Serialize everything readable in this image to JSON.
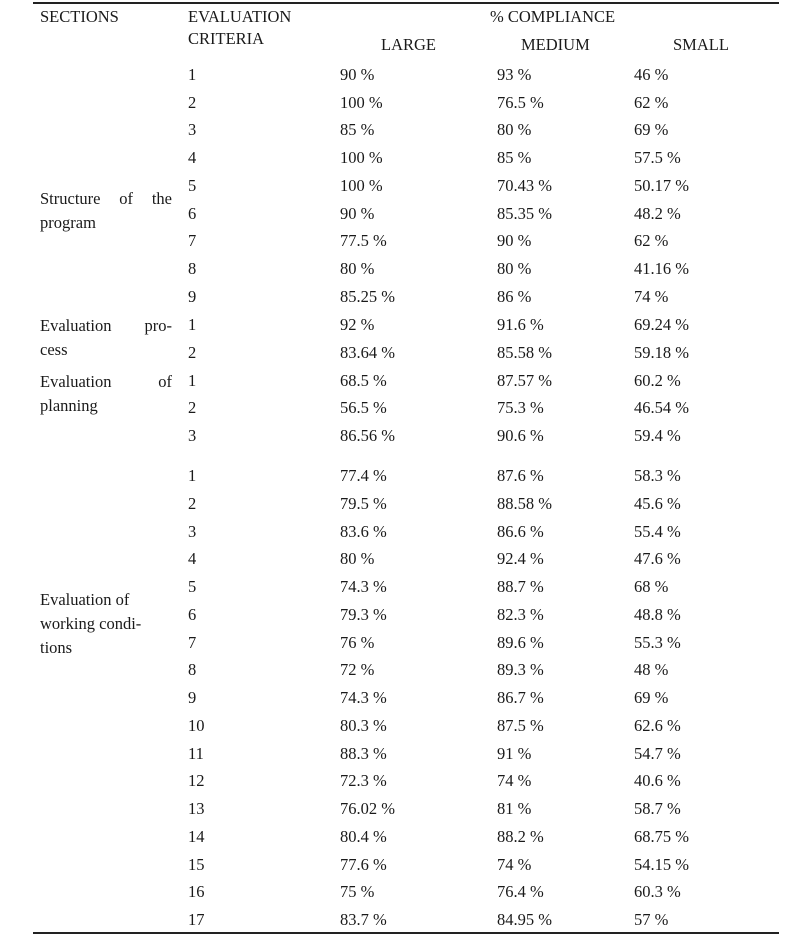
{
  "table": {
    "headers": {
      "sections": "SECTIONS",
      "criteria_line1": "EVALUATION",
      "criteria_line2": "CRITERIA",
      "compliance": "% COMPLIANCE",
      "large": "LARGE",
      "medium": "MEDIUM",
      "small": "SMALL"
    },
    "sections": [
      {
        "label_lines": [
          "Structure of the",
          "program"
        ]
      },
      {
        "label_lines": [
          "Evaluation pro-",
          "cess"
        ]
      },
      {
        "label_lines": [
          "Evaluation of",
          "planning"
        ]
      },
      {
        "label_lines": [
          "Evaluation of",
          "working condi-",
          "tions"
        ]
      }
    ],
    "rows": [
      {
        "section": 0,
        "criteria": "1",
        "large": "90 %",
        "medium": "93 %",
        "small": "46 %"
      },
      {
        "section": 0,
        "criteria": "2",
        "large": "100 %",
        "medium": "76.5 %",
        "small": "62 %"
      },
      {
        "section": 0,
        "criteria": "3",
        "large": "85 %",
        "medium": "80 %",
        "small": "69 %"
      },
      {
        "section": 0,
        "criteria": "4",
        "large": "100 %",
        "medium": "85 %",
        "small": "57.5 %"
      },
      {
        "section": 0,
        "criteria": "5",
        "large": "100 %",
        "medium": "70.43 %",
        "small": "50.17 %"
      },
      {
        "section": 0,
        "criteria": "6",
        "large": "90 %",
        "medium": "85.35 %",
        "small": "48.2 %"
      },
      {
        "section": 0,
        "criteria": "7",
        "large": "77.5 %",
        "medium": "90 %",
        "small": "62 %"
      },
      {
        "section": 0,
        "criteria": "8",
        "large": "80 %",
        "medium": "80 %",
        "small": "41.16 %"
      },
      {
        "section": 0,
        "criteria": "9",
        "large": "85.25 %",
        "medium": "86 %",
        "small": "74 %"
      },
      {
        "section": 1,
        "criteria": "1",
        "large": "92 %",
        "medium": "91.6 %",
        "small": "69.24 %"
      },
      {
        "section": 1,
        "criteria": "2",
        "large": "83.64 %",
        "medium": "85.58 %",
        "small": "59.18 %"
      },
      {
        "section": 2,
        "criteria": "1",
        "large": "68.5 %",
        "medium": "87.57 %",
        "small": "60.2 %"
      },
      {
        "section": 2,
        "criteria": "2",
        "large": "56.5 %",
        "medium": "75.3 %",
        "small": "46.54 %"
      },
      {
        "section": 2,
        "criteria": "3",
        "large": "86.56 %",
        "medium": "90.6 %",
        "small": "59.4 %"
      },
      {
        "section": 3,
        "criteria": "1",
        "large": "77.4 %",
        "medium": "87.6 %",
        "small": "58.3 %"
      },
      {
        "section": 3,
        "criteria": "2",
        "large": "79.5 %",
        "medium": "88.58 %",
        "small": "45.6 %"
      },
      {
        "section": 3,
        "criteria": "3",
        "large": "83.6 %",
        "medium": "86.6 %",
        "small": "55.4 %"
      },
      {
        "section": 3,
        "criteria": "4",
        "large": "80 %",
        "medium": "92.4 %",
        "small": "47.6 %"
      },
      {
        "section": 3,
        "criteria": "5",
        "large": "74.3 %",
        "medium": "88.7  %",
        "small": "68 %"
      },
      {
        "section": 3,
        "criteria": "6",
        "large": "79.3 %",
        "medium": "82.3 %",
        "small": "48.8 %"
      },
      {
        "section": 3,
        "criteria": "7",
        "large": "76 %",
        "medium": "89.6 %",
        "small": "55.3 %"
      },
      {
        "section": 3,
        "criteria": "8",
        "large": "72 %",
        "medium": "89.3 %",
        "small": "48 %"
      },
      {
        "section": 3,
        "criteria": "9",
        "large": "74.3 %",
        "medium": "86.7 %",
        "small": "69 %"
      },
      {
        "section": 3,
        "criteria": "10",
        "large": "80.3 %",
        "medium": "87.5 %",
        "small": "62.6 %"
      },
      {
        "section": 3,
        "criteria": "11",
        "large": "88.3 %",
        "medium": "91 %",
        "small": "54.7 %"
      },
      {
        "section": 3,
        "criteria": "12",
        "large": "72.3 %",
        "medium": "74 %",
        "small": "40.6 %"
      },
      {
        "section": 3,
        "criteria": "13",
        "large": "76.02 %",
        "medium": "81 %",
        "small": "58.7 %"
      },
      {
        "section": 3,
        "criteria": "14",
        "large": "80.4 %",
        "medium": "88.2 %",
        "small": "68.75 %"
      },
      {
        "section": 3,
        "criteria": "15",
        "large": "77.6 %",
        "medium": "74 %",
        "small": "54.15 %"
      },
      {
        "section": 3,
        "criteria": "16",
        "large": "75 %",
        "medium": "76.4 %",
        "small": "60.3 %"
      },
      {
        "section": 3,
        "criteria": "17",
        "large": "83.7 %",
        "medium": "84.95 %",
        "small": "57 %"
      }
    ]
  }
}
